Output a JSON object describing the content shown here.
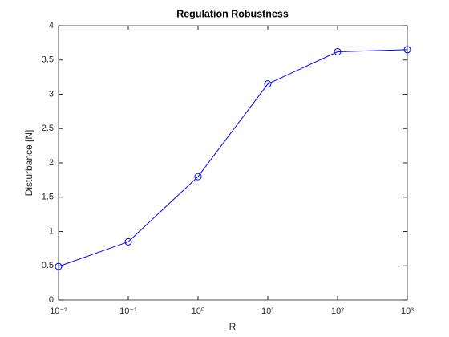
{
  "chart_data": {
    "type": "line",
    "title": "Regulation Robustness",
    "x_label": "R",
    "y_label": "Disturbance [N]",
    "x": [
      0.01,
      0.1,
      1,
      10,
      100,
      1000
    ],
    "series": [
      {
        "color": "#0000ff",
        "marker": "circle",
        "values": [
          0.49,
          0.85,
          1.8,
          3.15,
          3.62,
          3.65
        ]
      }
    ],
    "xscale": "log",
    "xlim": [
      0.01,
      1000
    ],
    "xticks": [
      {
        "value": 0.01,
        "label": "10⁻²"
      },
      {
        "value": 0.1,
        "label": "10⁻¹"
      },
      {
        "value": 1,
        "label": "10⁰"
      },
      {
        "value": 10,
        "label": "10¹"
      },
      {
        "value": 100,
        "label": "10²"
      },
      {
        "value": 1000,
        "label": "10³"
      }
    ],
    "ylim": [
      0,
      4
    ],
    "yticks": [
      0,
      0.5,
      1,
      1.5,
      2,
      2.5,
      3,
      3.5,
      4
    ],
    "grid": false
  }
}
